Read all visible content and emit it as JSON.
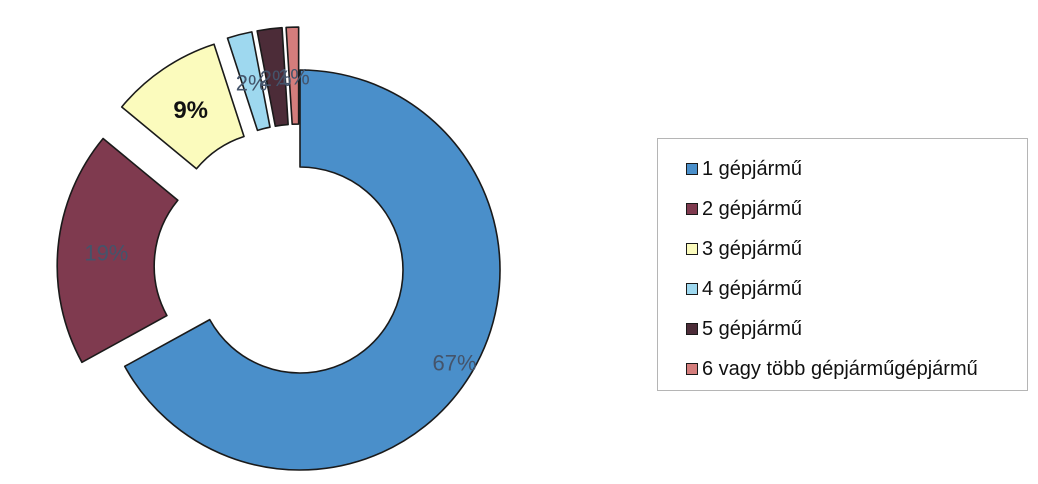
{
  "chart_data": {
    "type": "donut",
    "exploded": true,
    "legend_position": "right",
    "categories": [
      "1 gépjármű",
      "2 gépjármű",
      "3 gépjármű",
      "4 gépjármű",
      "5 gépjármű",
      "6 vagy több gépjárműgépjármű"
    ],
    "values": [
      67,
      19,
      9,
      2,
      2,
      1
    ],
    "labels": [
      "67%",
      "19%",
      "9%",
      "2%",
      "2%",
      "1%"
    ],
    "colors": [
      "#4a8fca",
      "#7f3a4f",
      "#fbfbbd",
      "#9ed8ef",
      "#4c2c38",
      "#d47d7c"
    ],
    "label_colors": [
      "#44546b",
      "#44546b",
      "#111111",
      "#44546b",
      "#44546b",
      "#44546b"
    ]
  }
}
